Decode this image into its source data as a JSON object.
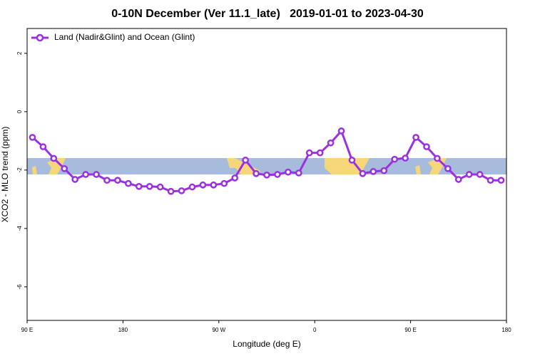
{
  "chart_data": {
    "type": "line",
    "title": "0-10N December (Ver 11.1_late)   2019-01-01 to 2023-04-30",
    "xlabel": "Longitude (deg E)",
    "ylabel": "XCO2 - MLO trend (ppm)",
    "x": [
      95,
      105,
      115,
      125,
      135,
      145,
      155,
      165,
      175,
      185,
      195,
      205,
      215,
      225,
      235,
      245,
      255,
      265,
      275,
      285,
      295,
      305,
      315,
      325,
      335,
      345,
      355,
      365,
      375,
      385,
      395,
      405,
      415,
      425,
      435,
      445,
      455,
      465,
      475,
      485,
      495,
      505,
      515,
      525,
      535
    ],
    "series": [
      {
        "name": "Land (Nadir&Glint) and Ocean (Glint)",
        "color": "#9b30e0",
        "values": [
          -0.88,
          -1.2,
          -1.6,
          -1.95,
          -2.32,
          -2.15,
          -2.15,
          -2.35,
          -2.35,
          -2.46,
          -2.56,
          -2.56,
          -2.58,
          -2.73,
          -2.71,
          -2.58,
          -2.51,
          -2.51,
          -2.46,
          -2.27,
          -1.66,
          -2.12,
          -2.17,
          -2.15,
          -2.07,
          -2.1,
          -1.41,
          -1.41,
          -1.07,
          -0.66,
          -1.66,
          -2.12,
          -2.05,
          -2.02,
          -1.63,
          -1.59,
          -0.88,
          -1.2,
          -1.6,
          -1.95,
          -2.32,
          -2.15,
          -2.15,
          -2.35,
          -2.35
        ]
      }
    ],
    "xlim": [
      90,
      540
    ],
    "xticks": [
      {
        "value": 90,
        "label": "90 E"
      },
      {
        "value": 180,
        "label": "180"
      },
      {
        "value": 270,
        "label": "90 W"
      },
      {
        "value": 360,
        "label": "0"
      },
      {
        "value": 450,
        "label": "90 E"
      },
      {
        "value": 540,
        "label": "180"
      }
    ],
    "ylim": [
      -7.15,
      2.85
    ],
    "yticks": [
      2,
      0,
      -2,
      -4,
      -6
    ],
    "legend": "top-left"
  }
}
